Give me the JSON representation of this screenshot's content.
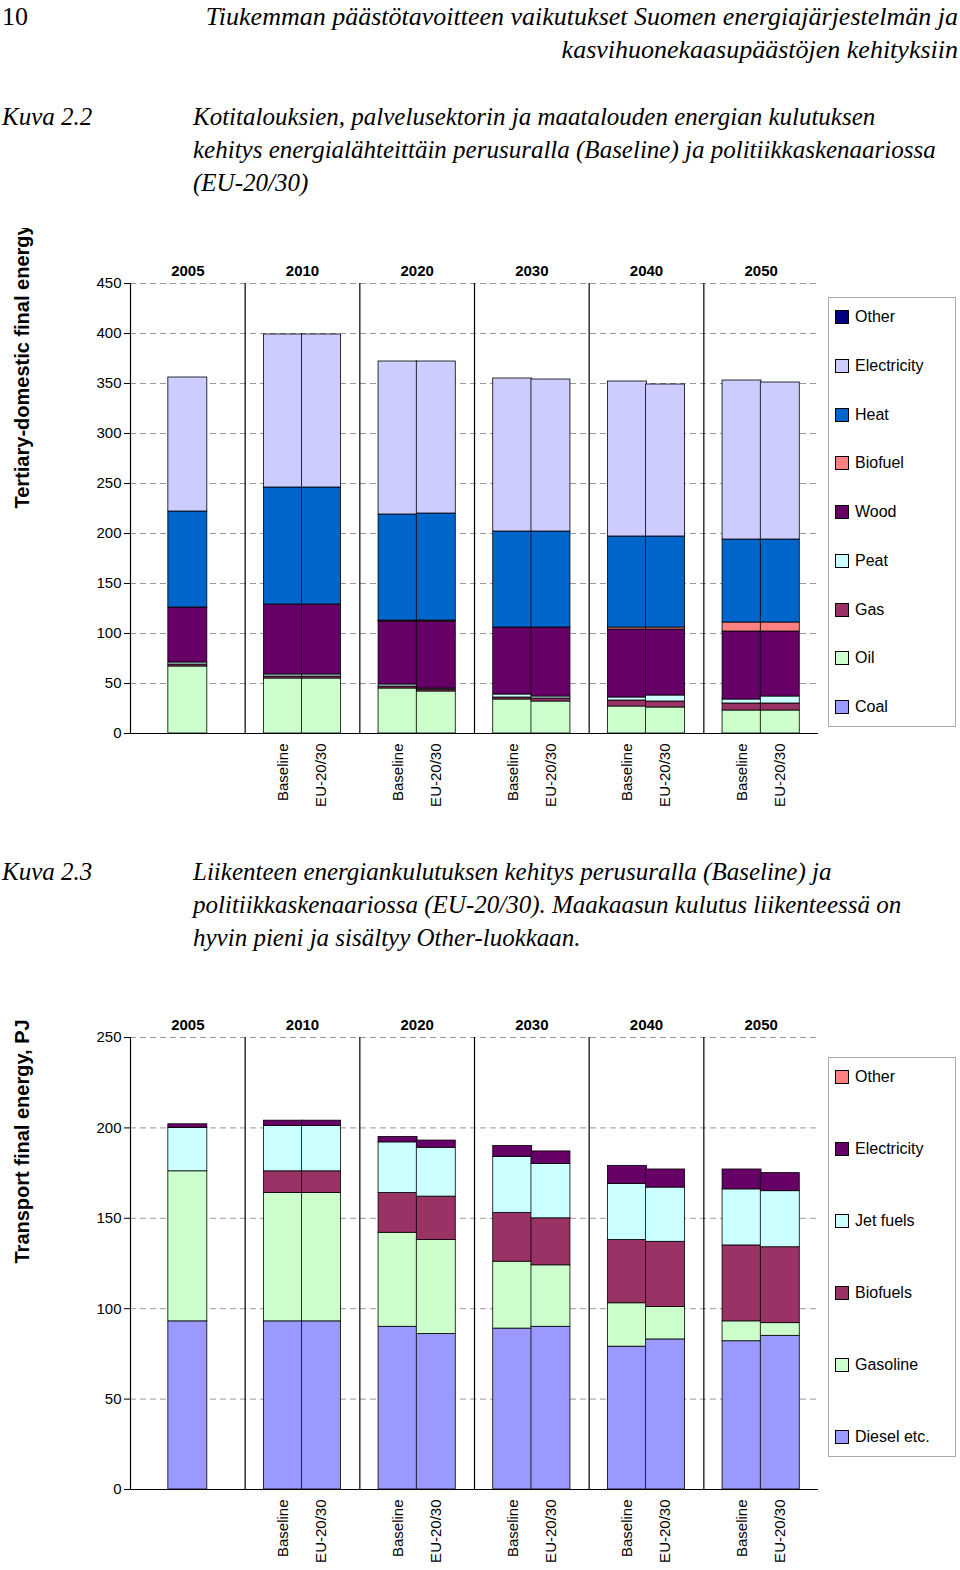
{
  "page_header": {
    "page_number": "10",
    "title": "Tiukemman päästötavoitteen vaikutukset Suomen energiajärjestelmän ja kasvihuonekaasupäästöjen kehityksiin"
  },
  "chart_data": [
    {
      "type": "bar",
      "stacked": true,
      "figure": "Kuva 2.2",
      "title": "Kotitalouksien, palvelusektorin ja maatalouden energian kulutuksen kehitys energialähteittäin perusuralla (Baseline) ja politiikkaskenaariossa (EU-20/30)",
      "ylabel": "Tertiary-domestic final energy, PJ",
      "groups": [
        "2005",
        "2010",
        "2010",
        "2020",
        "2020",
        "2030",
        "2030",
        "2040",
        "2040",
        "2050",
        "2050"
      ],
      "categories": [
        null,
        "Baseline",
        "EU-20/30",
        "Baseline",
        "EU-20/30",
        "Baseline",
        "EU-20/30",
        "Baseline",
        "EU-20/30",
        "Baseline",
        "EU-20/30"
      ],
      "series": [
        {
          "name": "Coal",
          "color": "#9999ff",
          "values": [
            0,
            0,
            0,
            0,
            0,
            0,
            0,
            0,
            0,
            0,
            0
          ]
        },
        {
          "name": "Oil",
          "color": "#ccffcc",
          "values": [
            67,
            55,
            55,
            45,
            42,
            34,
            32,
            27,
            26,
            23,
            23
          ]
        },
        {
          "name": "Gas",
          "color": "#993366",
          "values": [
            2,
            2,
            2,
            2,
            2,
            2,
            3,
            6,
            6,
            7,
            7
          ]
        },
        {
          "name": "Peat",
          "color": "#ccffff",
          "values": [
            2,
            2,
            2,
            2,
            1,
            3,
            2,
            3,
            6,
            4,
            7
          ]
        },
        {
          "name": "Wood",
          "color": "#660066",
          "values": [
            55,
            70,
            70,
            63,
            67,
            67,
            69,
            68,
            66,
            68,
            65
          ]
        },
        {
          "name": "Biofuel",
          "color": "#ff8080",
          "values": [
            0,
            0,
            0,
            1,
            1,
            0,
            0,
            2,
            2,
            9,
            9
          ]
        },
        {
          "name": "Heat",
          "color": "#0066cc",
          "values": [
            96,
            117,
            117,
            106,
            107,
            96,
            96,
            91,
            91,
            83,
            83
          ]
        },
        {
          "name": "Electricity",
          "color": "#ccccff",
          "values": [
            134,
            153,
            153,
            153,
            152,
            153,
            152,
            155,
            152,
            159,
            157
          ]
        },
        {
          "name": "Other",
          "color": "#000080",
          "values": [
            0,
            0,
            0,
            0,
            0,
            0,
            0,
            0,
            0,
            0,
            0
          ]
        }
      ],
      "ylim": [
        0,
        450
      ],
      "yticks": [
        0,
        50,
        100,
        150,
        200,
        250,
        300,
        350,
        400,
        450
      ],
      "grid": true,
      "legend": "right"
    },
    {
      "type": "bar",
      "stacked": true,
      "figure": "Kuva 2.3",
      "title": "Liikenteen energiankulutuksen kehitys perusuralla (Baseline) ja politiikkaskenaariossa (EU-20/30). Maakaasun kulutus liikenteessä on hyvin pieni ja sisältyy Other-luokkaan.",
      "ylabel": "Transport final energy, PJ",
      "groups": [
        "2005",
        "2010",
        "2010",
        "2020",
        "2020",
        "2030",
        "2030",
        "2040",
        "2040",
        "2050",
        "2050"
      ],
      "categories": [
        null,
        "Baseline",
        "EU-20/30",
        "Baseline",
        "EU-20/30",
        "Baseline",
        "EU-20/30",
        "Baseline",
        "EU-20/30",
        "Baseline",
        "EU-20/30"
      ],
      "series": [
        {
          "name": "Diesel etc.",
          "color": "#9999ff",
          "values": [
            93,
            93,
            93,
            90,
            86,
            89,
            90,
            79,
            83,
            82,
            85
          ]
        },
        {
          "name": "Gasoline",
          "color": "#ccffcc",
          "values": [
            83,
            71,
            71,
            52,
            52,
            37,
            34,
            24,
            18,
            11,
            7
          ]
        },
        {
          "name": "Biofuels",
          "color": "#993366",
          "values": [
            0,
            12,
            12,
            22,
            24,
            27,
            26,
            35,
            36,
            42,
            42
          ]
        },
        {
          "name": "Jet fuels",
          "color": "#ccffff",
          "values": [
            24,
            25,
            25,
            28,
            27,
            31,
            30,
            31,
            30,
            31,
            31
          ]
        },
        {
          "name": "Electricity",
          "color": "#660066",
          "values": [
            2,
            3,
            3,
            3,
            4,
            6,
            7,
            10,
            10,
            11,
            10
          ]
        },
        {
          "name": "Other",
          "color": "#ff8080",
          "values": [
            0,
            0,
            0,
            0,
            0,
            0,
            0,
            0,
            0,
            0,
            0
          ]
        }
      ],
      "ylim": [
        0,
        250
      ],
      "yticks": [
        0,
        50,
        100,
        150,
        200,
        250
      ],
      "grid": true,
      "legend": "right"
    }
  ]
}
